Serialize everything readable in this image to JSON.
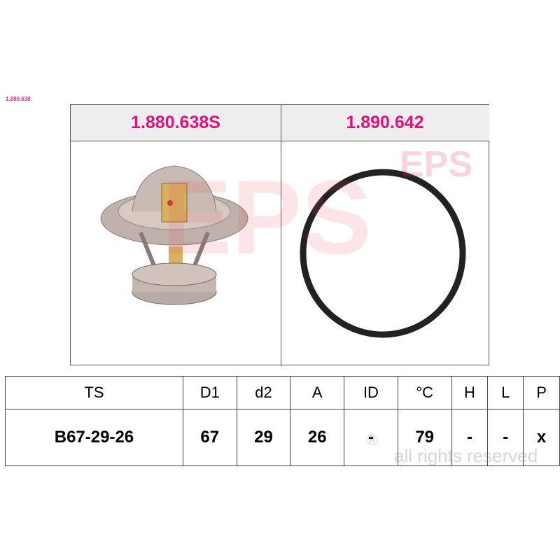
{
  "reference": "1.880.638",
  "products": [
    {
      "code": "1.880.638S",
      "image": "thermostat"
    },
    {
      "code": "1.890.642",
      "image": "o-ring-seal"
    }
  ],
  "watermark": {
    "logo": "EPS",
    "notice": "all rights reserved",
    "registered": "®"
  },
  "table": {
    "headers": [
      "TS",
      "D1",
      "d2",
      "A",
      "ID",
      "°C",
      "H",
      "L",
      "P"
    ],
    "values": [
      "B67-29-26",
      "67",
      "29",
      "26",
      "-",
      "79",
      "-",
      "-",
      "x"
    ]
  },
  "colors": {
    "accent": "#e0127a",
    "header_bg": "#eeeeee",
    "border": "#555555"
  }
}
